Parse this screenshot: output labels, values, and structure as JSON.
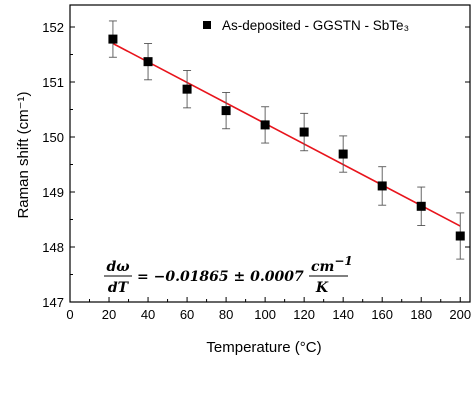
{
  "chart_data": {
    "type": "scatter",
    "title": "",
    "xlabel": "Temperature (°C)",
    "ylabel": "Raman shift (cm⁻¹)",
    "xlim": [
      0,
      205
    ],
    "ylim": [
      147,
      152.4
    ],
    "xticks": [
      0,
      20,
      40,
      60,
      80,
      100,
      120,
      140,
      160,
      180,
      200
    ],
    "yticks": [
      147,
      148,
      149,
      150,
      151,
      152
    ],
    "grid": false,
    "legend_position": "top-right",
    "series": [
      {
        "name": "As-deposited - GGSTN - SbTe₃",
        "marker": "square",
        "color": "#000000",
        "x": [
          22,
          40,
          60,
          80,
          100,
          120,
          140,
          160,
          180,
          200
        ],
        "y": [
          151.78,
          151.37,
          150.87,
          150.48,
          150.22,
          150.09,
          149.69,
          149.11,
          148.74,
          148.2
        ],
        "yerr": [
          0.33,
          0.33,
          0.34,
          0.33,
          0.33,
          0.34,
          0.33,
          0.35,
          0.35,
          0.42
        ]
      }
    ],
    "fit": {
      "color": "#e8141c",
      "x": [
        22,
        200
      ],
      "y": [
        151.7,
        148.38
      ]
    },
    "annotation": {
      "lhs_num": "dω",
      "lhs_den": "dT",
      "middle": "= −0.01865 ± 0.0007",
      "rhs_num": "cm",
      "rhs_num_sup": "−1",
      "rhs_den": "K"
    }
  }
}
